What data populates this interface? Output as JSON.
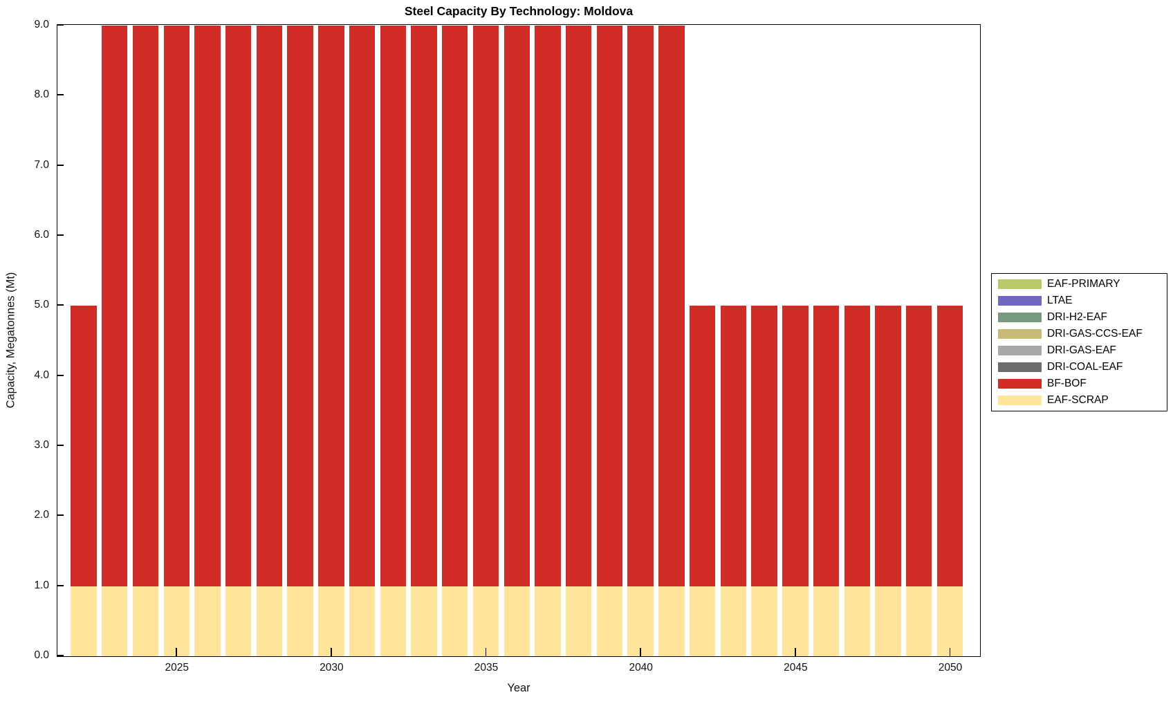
{
  "chart_data": {
    "type": "bar",
    "stacked": true,
    "title": "Steel Capacity By Technology: Moldova",
    "xlabel": "Year",
    "ylabel": "Capacity, Megatonnes (Mt)",
    "x": [
      2022,
      2023,
      2024,
      2025,
      2026,
      2027,
      2028,
      2029,
      2030,
      2031,
      2032,
      2033,
      2034,
      2035,
      2036,
      2037,
      2038,
      2039,
      2040,
      2041,
      2042,
      2043,
      2044,
      2045,
      2046,
      2047,
      2048,
      2049,
      2050
    ],
    "series": [
      {
        "name": "EAF-PRIMARY",
        "color": "#b9c96a",
        "values": [
          0,
          0,
          0,
          0,
          0,
          0,
          0,
          0,
          0,
          0,
          0,
          0,
          0,
          0,
          0,
          0,
          0,
          0,
          0,
          0,
          0,
          0,
          0,
          0,
          0,
          0,
          0,
          0,
          0
        ]
      },
      {
        "name": "LTAE",
        "color": "#7267c0",
        "values": [
          0,
          0,
          0,
          0,
          0,
          0,
          0,
          0,
          0,
          0,
          0,
          0,
          0,
          0,
          0,
          0,
          0,
          0,
          0,
          0,
          0,
          0,
          0,
          0,
          0,
          0,
          0,
          0,
          0
        ]
      },
      {
        "name": "DRI-H2-EAF",
        "color": "#77997d",
        "values": [
          0,
          0,
          0,
          0,
          0,
          0,
          0,
          0,
          0,
          0,
          0,
          0,
          0,
          0,
          0,
          0,
          0,
          0,
          0,
          0,
          0,
          0,
          0,
          0,
          0,
          0,
          0,
          0,
          0
        ]
      },
      {
        "name": "DRI-GAS-CCS-EAF",
        "color": "#c6ba74",
        "values": [
          0,
          0,
          0,
          0,
          0,
          0,
          0,
          0,
          0,
          0,
          0,
          0,
          0,
          0,
          0,
          0,
          0,
          0,
          0,
          0,
          0,
          0,
          0,
          0,
          0,
          0,
          0,
          0,
          0
        ]
      },
      {
        "name": "DRI-GAS-EAF",
        "color": "#a8a8a8",
        "values": [
          0,
          0,
          0,
          0,
          0,
          0,
          0,
          0,
          0,
          0,
          0,
          0,
          0,
          0,
          0,
          0,
          0,
          0,
          0,
          0,
          0,
          0,
          0,
          0,
          0,
          0,
          0,
          0,
          0
        ]
      },
      {
        "name": "DRI-COAL-EAF",
        "color": "#6d6d6d",
        "values": [
          0,
          0,
          0,
          0,
          0,
          0,
          0,
          0,
          0,
          0,
          0,
          0,
          0,
          0,
          0,
          0,
          0,
          0,
          0,
          0,
          0,
          0,
          0,
          0,
          0,
          0,
          0,
          0,
          0
        ]
      },
      {
        "name": "BF-BOF",
        "color": "#d02b25",
        "values": [
          4,
          8,
          8,
          8,
          8,
          8,
          8,
          8,
          8,
          8,
          8,
          8,
          8,
          8,
          8,
          8,
          8,
          8,
          8,
          8,
          4,
          4,
          4,
          4,
          4,
          4,
          4,
          4,
          4
        ]
      },
      {
        "name": "EAF-SCRAP",
        "color": "#ffe59a",
        "values": [
          1,
          1,
          1,
          1,
          1,
          1,
          1,
          1,
          1,
          1,
          1,
          1,
          1,
          1,
          1,
          1,
          1,
          1,
          1,
          1,
          1,
          1,
          1,
          1,
          1,
          1,
          1,
          1,
          1
        ]
      }
    ],
    "totals_by_year": {
      "2022": 5.0,
      "2023_to_2041": 9.0,
      "2042_to_2050": 5.0
    },
    "xlim": [
      2021.15,
      2050.95
    ],
    "ylim": [
      0,
      9
    ],
    "x_ticks": [
      2025,
      2030,
      2035,
      2040,
      2045,
      2050
    ],
    "y_tick_labels": [
      "0.0",
      "1.0",
      "2.0",
      "3.0",
      "4.0",
      "5.0",
      "6.0",
      "7.0",
      "8.0",
      "9.0"
    ],
    "grid": false,
    "legend_position": "right",
    "bar_gap_color": "#ffffff",
    "axis_color": "#000000"
  }
}
